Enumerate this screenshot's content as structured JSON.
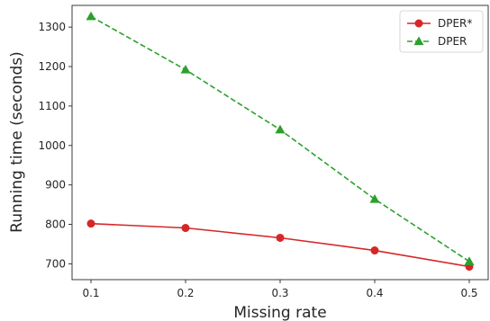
{
  "chart_data": {
    "type": "line",
    "title": "",
    "xlabel": "Missing rate",
    "ylabel": "Running time (seconds)",
    "x": [
      0.1,
      0.2,
      0.3,
      0.4,
      0.5
    ],
    "x_ticks": [
      "0.1",
      "0.2",
      "0.3",
      "0.4",
      "0.5"
    ],
    "y_ticks": [
      "700",
      "800",
      "900",
      "1000",
      "1100",
      "1200",
      "1300"
    ],
    "xlim": [
      0.08,
      0.52
    ],
    "ylim": [
      660,
      1355
    ],
    "grid": false,
    "legend_position": "top-right",
    "series": [
      {
        "name": "DPER*",
        "values": [
          802,
          791,
          766,
          734,
          693
        ],
        "color": "#d62728",
        "linestyle": "solid",
        "marker": "circle"
      },
      {
        "name": "DPER",
        "values": [
          1327,
          1192,
          1040,
          864,
          706
        ],
        "color": "#2ca02c",
        "linestyle": "dashed",
        "marker": "triangle"
      }
    ]
  }
}
